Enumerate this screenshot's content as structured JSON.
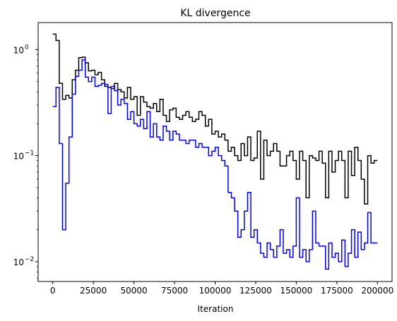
{
  "chart_data": {
    "type": "line",
    "title": "KL divergence",
    "xlabel": "Iteration",
    "ylabel": "",
    "xlim": [
      -9000,
      209000
    ],
    "ylim": [
      0.0065,
      1.8
    ],
    "yscale": "log",
    "grid": false,
    "xticks": [
      0,
      25000,
      50000,
      75000,
      100000,
      125000,
      150000,
      175000,
      200000
    ],
    "xtick_labels": [
      "0",
      "25000",
      "50000",
      "75000",
      "100000",
      "125000",
      "150000",
      "175000",
      "200000"
    ],
    "yticks": [
      0.01,
      0.1,
      1
    ],
    "ytick_labels": [
      "10",
      "10",
      "10"
    ],
    "ytick_exponents": [
      "−2",
      "−1",
      "0"
    ],
    "step_width": 2000,
    "series": [
      {
        "color": "#000000",
        "x": [
          0,
          2000,
          4000,
          6000,
          8000,
          10000,
          12000,
          14000,
          16000,
          18000,
          20000,
          22000,
          24000,
          26000,
          28000,
          30000,
          32000,
          34000,
          36000,
          38000,
          40000,
          42000,
          44000,
          46000,
          48000,
          50000,
          52000,
          54000,
          56000,
          58000,
          60000,
          62000,
          64000,
          66000,
          68000,
          70000,
          72000,
          74000,
          76000,
          78000,
          80000,
          82000,
          84000,
          86000,
          88000,
          90000,
          92000,
          94000,
          96000,
          98000,
          100000,
          102000,
          104000,
          106000,
          108000,
          110000,
          112000,
          114000,
          116000,
          118000,
          120000,
          122000,
          124000,
          126000,
          128000,
          130000,
          132000,
          134000,
          136000,
          138000,
          140000,
          142000,
          144000,
          146000,
          148000,
          150000,
          152000,
          154000,
          156000,
          158000,
          160000,
          162000,
          164000,
          166000,
          168000,
          170000,
          172000,
          174000,
          176000,
          178000,
          180000,
          182000,
          184000,
          186000,
          188000,
          190000,
          192000,
          194000,
          196000,
          198000
        ],
        "y": [
          1.4,
          1.22,
          0.48,
          0.34,
          0.37,
          0.35,
          0.52,
          0.64,
          0.84,
          0.85,
          0.75,
          0.63,
          0.64,
          0.58,
          0.61,
          0.52,
          0.45,
          0.44,
          0.43,
          0.48,
          0.42,
          0.4,
          0.35,
          0.44,
          0.34,
          0.36,
          0.24,
          0.36,
          0.32,
          0.29,
          0.28,
          0.31,
          0.26,
          0.34,
          0.24,
          0.21,
          0.27,
          0.28,
          0.23,
          0.22,
          0.24,
          0.26,
          0.23,
          0.21,
          0.22,
          0.26,
          0.24,
          0.19,
          0.22,
          0.16,
          0.17,
          0.15,
          0.16,
          0.14,
          0.11,
          0.12,
          0.1,
          0.09,
          0.13,
          0.1,
          0.15,
          0.09,
          0.095,
          0.17,
          0.06,
          0.14,
          0.1,
          0.11,
          0.13,
          0.11,
          0.08,
          0.08,
          0.1,
          0.11,
          0.09,
          0.06,
          0.11,
          0.09,
          0.04,
          0.1,
          0.095,
          0.09,
          0.11,
          0.085,
          0.04,
          0.11,
          0.07,
          0.09,
          0.11,
          0.09,
          0.04,
          0.11,
          0.065,
          0.12,
          0.09,
          0.06,
          0.035,
          0.1,
          0.085,
          0.09
        ]
      },
      {
        "color": "#0000ff",
        "x": [
          0,
          2000,
          4000,
          6000,
          8000,
          10000,
          12000,
          14000,
          16000,
          18000,
          20000,
          22000,
          24000,
          26000,
          28000,
          30000,
          32000,
          34000,
          36000,
          38000,
          40000,
          42000,
          44000,
          46000,
          48000,
          50000,
          52000,
          54000,
          56000,
          58000,
          60000,
          62000,
          64000,
          66000,
          68000,
          70000,
          72000,
          74000,
          76000,
          78000,
          80000,
          82000,
          84000,
          86000,
          88000,
          90000,
          92000,
          94000,
          96000,
          98000,
          100000,
          102000,
          104000,
          106000,
          108000,
          110000,
          112000,
          114000,
          116000,
          118000,
          120000,
          122000,
          124000,
          126000,
          128000,
          130000,
          132000,
          134000,
          136000,
          138000,
          140000,
          142000,
          144000,
          146000,
          148000,
          150000,
          152000,
          154000,
          156000,
          158000,
          160000,
          162000,
          164000,
          166000,
          168000,
          170000,
          172000,
          174000,
          176000,
          178000,
          180000,
          182000,
          184000,
          186000,
          188000,
          190000,
          192000,
          194000,
          196000,
          198000
        ],
        "y": [
          0.29,
          0.44,
          0.13,
          0.02,
          0.055,
          0.15,
          0.38,
          0.56,
          0.64,
          0.8,
          0.55,
          0.5,
          0.55,
          0.45,
          0.46,
          0.48,
          0.47,
          0.25,
          0.45,
          0.41,
          0.3,
          0.34,
          0.31,
          0.22,
          0.26,
          0.2,
          0.19,
          0.22,
          0.18,
          0.26,
          0.15,
          0.2,
          0.15,
          0.14,
          0.19,
          0.17,
          0.14,
          0.17,
          0.16,
          0.14,
          0.14,
          0.13,
          0.14,
          0.14,
          0.12,
          0.13,
          0.12,
          0.12,
          0.1,
          0.11,
          0.12,
          0.1,
          0.09,
          0.08,
          0.045,
          0.04,
          0.03,
          0.017,
          0.02,
          0.03,
          0.045,
          0.017,
          0.02,
          0.015,
          0.012,
          0.011,
          0.015,
          0.013,
          0.011,
          0.014,
          0.02,
          0.012,
          0.013,
          0.011,
          0.014,
          0.04,
          0.011,
          0.013,
          0.01,
          0.013,
          0.03,
          0.015,
          0.014,
          0.014,
          0.0085,
          0.015,
          0.011,
          0.012,
          0.01,
          0.016,
          0.009,
          0.012,
          0.02,
          0.011,
          0.019,
          0.013,
          0.015,
          0.029,
          0.015,
          0.015
        ]
      }
    ]
  }
}
